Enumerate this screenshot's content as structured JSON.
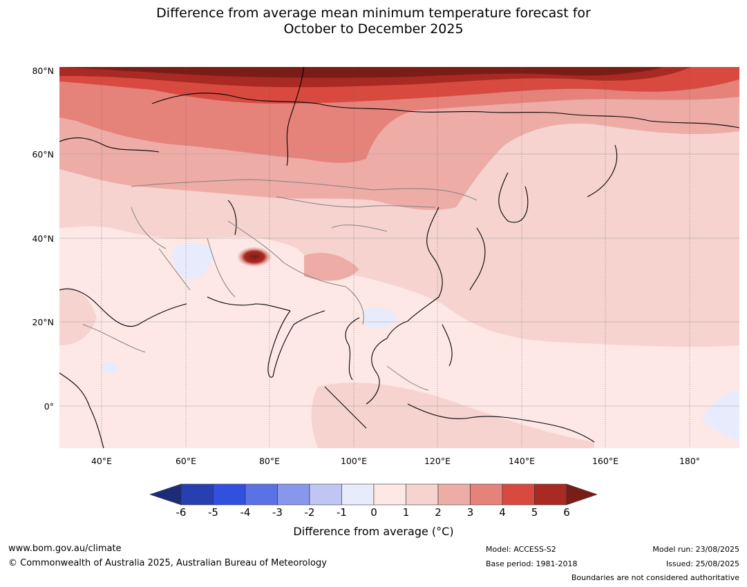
{
  "title_line1": "Difference from average mean minimum temperature forecast for",
  "title_line2": "October to December 2025",
  "lat_labels": [
    "80°N",
    "60°N",
    "40°N",
    "20°N",
    "0°"
  ],
  "lon_labels": [
    "40°E",
    "60°E",
    "80°E",
    "100°E",
    "120°E",
    "140°E",
    "160°E",
    "180°"
  ],
  "colorbar": {
    "ticks": [
      "-6",
      "-5",
      "-4",
      "-3",
      "-2",
      "-1",
      "0",
      "1",
      "2",
      "3",
      "4",
      "5",
      "6"
    ],
    "colors": [
      "#1c2c78",
      "#273fb0",
      "#3150e0",
      "#5b71e6",
      "#8797ec",
      "#bfc6f4",
      "#e8ebfc",
      "#fde8e6",
      "#f6d3cf",
      "#edaca6",
      "#e5827a",
      "#d84a40",
      "#a92a22",
      "#7a1c18"
    ],
    "title": "Difference from average (°C)"
  },
  "footer": {
    "website": "www.bom.gov.au/climate",
    "copyright": "© Commonwealth of Australia 2025, Australian Bureau of Meteorology",
    "model": "Model: ACCESS-S2",
    "base_period": "Base period: 1981-2018",
    "model_run": "Model run: 23/08/2025",
    "issued": "Issued: 25/08/2025",
    "disclaimer": "Boundaries are not considered authoritative"
  }
}
